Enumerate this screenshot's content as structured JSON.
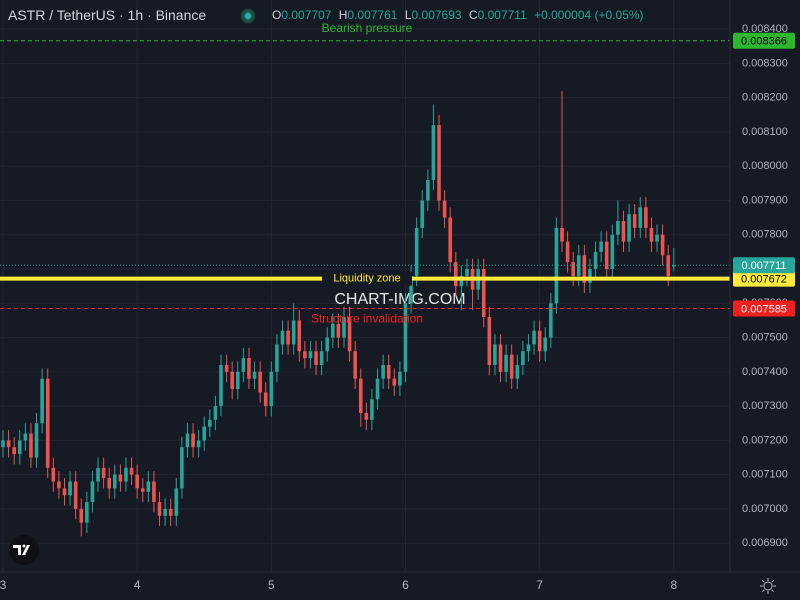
{
  "chart_data": {
    "type": "candlestick",
    "title": "ASTR / TetherUS · 1h · Binance",
    "legend": {
      "open_label": "O",
      "high_label": "H",
      "low_label": "L",
      "close_label": "C",
      "change": "+0.000004 (+0.05%)"
    },
    "watermark": "CHART-IMG.COM",
    "up_color": "#26a69a",
    "down_color": "#ef5350",
    "grid": true,
    "ylim": [
      0.006816,
      0.008485
    ],
    "yticks": [
      {
        "value": 0.0069,
        "label": "0.006900"
      },
      {
        "value": 0.007,
        "label": "0.007000"
      },
      {
        "value": 0.0071,
        "label": "0.007100"
      },
      {
        "value": 0.0072,
        "label": "0.007200"
      },
      {
        "value": 0.0073,
        "label": "0.007300"
      },
      {
        "value": 0.0074,
        "label": "0.007400"
      },
      {
        "value": 0.0075,
        "label": "0.007500"
      },
      {
        "value": 0.0076,
        "label": "0.007600"
      },
      {
        "value": 0.0077,
        "label": "0.007700"
      },
      {
        "value": 0.0078,
        "label": "0.007800"
      },
      {
        "value": 0.0079,
        "label": "0.007900"
      },
      {
        "value": 0.008,
        "label": "0.008000"
      },
      {
        "value": 0.0081,
        "label": "0.008100"
      },
      {
        "value": 0.0082,
        "label": "0.008200"
      },
      {
        "value": 0.0083,
        "label": "0.008300"
      },
      {
        "value": 0.0084,
        "label": "0.008400"
      }
    ],
    "categories": [
      "3",
      null,
      null,
      null,
      null,
      null,
      null,
      null,
      null,
      null,
      null,
      null,
      null,
      null,
      null,
      null,
      null,
      null,
      null,
      null,
      null,
      null,
      null,
      null,
      "4",
      null,
      null,
      null,
      null,
      null,
      null,
      null,
      null,
      null,
      null,
      null,
      null,
      null,
      null,
      null,
      null,
      null,
      null,
      null,
      null,
      null,
      null,
      null,
      "5",
      null,
      null,
      null,
      null,
      null,
      null,
      null,
      null,
      null,
      null,
      null,
      null,
      null,
      null,
      null,
      null,
      null,
      null,
      null,
      null,
      null,
      null,
      null,
      "6",
      null,
      null,
      null,
      null,
      null,
      null,
      null,
      null,
      null,
      null,
      null,
      null,
      null,
      null,
      null,
      null,
      null,
      null,
      null,
      null,
      null,
      null,
      null,
      "7",
      null,
      null,
      null,
      null,
      null,
      null,
      null,
      null,
      null,
      null,
      null,
      null,
      null,
      null,
      null,
      null,
      null,
      null,
      null,
      null,
      null,
      null,
      null,
      "8"
    ],
    "ohlc": [
      [
        0.00718,
        0.00723,
        0.00715,
        0.0072
      ],
      [
        0.0072,
        0.00723,
        0.00715,
        0.00718
      ],
      [
        0.00718,
        0.00721,
        0.00713,
        0.00716
      ],
      [
        0.00716,
        0.00723,
        0.00713,
        0.0072
      ],
      [
        0.0072,
        0.00725,
        0.00717,
        0.00722
      ],
      [
        0.00722,
        0.00725,
        0.00712,
        0.00715
      ],
      [
        0.00715,
        0.00728,
        0.00712,
        0.00725
      ],
      [
        0.00725,
        0.00741,
        0.00722,
        0.00738
      ],
      [
        0.00738,
        0.00741,
        0.00709,
        0.00712
      ],
      [
        0.00712,
        0.00715,
        0.00705,
        0.00708
      ],
      [
        0.00708,
        0.00711,
        0.00703,
        0.00706
      ],
      [
        0.00706,
        0.00709,
        0.00701,
        0.00704
      ],
      [
        0.00704,
        0.00711,
        0.00701,
        0.00708
      ],
      [
        0.00708,
        0.00711,
        0.00697,
        0.007
      ],
      [
        0.007,
        0.00703,
        0.00692,
        0.00696
      ],
      [
        0.00696,
        0.00705,
        0.00693,
        0.00702
      ],
      [
        0.00702,
        0.00711,
        0.00699,
        0.00708
      ],
      [
        0.00708,
        0.00715,
        0.00705,
        0.00712
      ],
      [
        0.00712,
        0.00715,
        0.00706,
        0.00709
      ],
      [
        0.00709,
        0.00712,
        0.00703,
        0.00706
      ],
      [
        0.00706,
        0.00713,
        0.00703,
        0.0071
      ],
      [
        0.0071,
        0.00713,
        0.00705,
        0.00708
      ],
      [
        0.00708,
        0.00715,
        0.00705,
        0.00712
      ],
      [
        0.00712,
        0.00715,
        0.00707,
        0.0071
      ],
      [
        0.0071,
        0.00713,
        0.00703,
        0.00706
      ],
      [
        0.00706,
        0.00709,
        0.00702,
        0.00705
      ],
      [
        0.00705,
        0.00711,
        0.00702,
        0.00708
      ],
      [
        0.00708,
        0.00711,
        0.00699,
        0.00702
      ],
      [
        0.00702,
        0.00705,
        0.00695,
        0.00698
      ],
      [
        0.00698,
        0.00703,
        0.00695,
        0.007
      ],
      [
        0.007,
        0.00703,
        0.00695,
        0.00698
      ],
      [
        0.00698,
        0.00709,
        0.00695,
        0.00706
      ],
      [
        0.00706,
        0.00721,
        0.00703,
        0.00718
      ],
      [
        0.00718,
        0.00725,
        0.00715,
        0.00722
      ],
      [
        0.00722,
        0.00725,
        0.00715,
        0.00718
      ],
      [
        0.00718,
        0.00723,
        0.00715,
        0.0072
      ],
      [
        0.0072,
        0.00727,
        0.00717,
        0.00724
      ],
      [
        0.00724,
        0.00729,
        0.00721,
        0.00726
      ],
      [
        0.00726,
        0.00733,
        0.00723,
        0.0073
      ],
      [
        0.0073,
        0.00745,
        0.00727,
        0.00742
      ],
      [
        0.00742,
        0.00745,
        0.00737,
        0.0074
      ],
      [
        0.0074,
        0.00743,
        0.00732,
        0.00735
      ],
      [
        0.00735,
        0.00743,
        0.00732,
        0.0074
      ],
      [
        0.0074,
        0.00747,
        0.00737,
        0.00744
      ],
      [
        0.00744,
        0.00747,
        0.00735,
        0.00738
      ],
      [
        0.00738,
        0.00743,
        0.00735,
        0.0074
      ],
      [
        0.0074,
        0.00743,
        0.00731,
        0.00734
      ],
      [
        0.00734,
        0.00737,
        0.00727,
        0.0073
      ],
      [
        0.0073,
        0.00743,
        0.00727,
        0.0074
      ],
      [
        0.0074,
        0.00751,
        0.00737,
        0.00748
      ],
      [
        0.00748,
        0.00755,
        0.00745,
        0.00752
      ],
      [
        0.00752,
        0.00755,
        0.00745,
        0.00748
      ],
      [
        0.00748,
        0.0076,
        0.00745,
        0.00755
      ],
      [
        0.00755,
        0.00758,
        0.00743,
        0.00746
      ],
      [
        0.00746,
        0.00749,
        0.00741,
        0.00744
      ],
      [
        0.00744,
        0.00749,
        0.00741,
        0.00746
      ],
      [
        0.00746,
        0.00749,
        0.00739,
        0.00742
      ],
      [
        0.00742,
        0.00749,
        0.00739,
        0.00746
      ],
      [
        0.00746,
        0.00753,
        0.00743,
        0.0075
      ],
      [
        0.0075,
        0.00757,
        0.00747,
        0.00754
      ],
      [
        0.00754,
        0.00757,
        0.00747,
        0.0075
      ],
      [
        0.0075,
        0.00759,
        0.00747,
        0.00756
      ],
      [
        0.00756,
        0.00759,
        0.00743,
        0.00746
      ],
      [
        0.00746,
        0.00749,
        0.00735,
        0.00738
      ],
      [
        0.00738,
        0.00741,
        0.00724,
        0.00728
      ],
      [
        0.00728,
        0.00731,
        0.00723,
        0.00726
      ],
      [
        0.00726,
        0.00735,
        0.00723,
        0.00732
      ],
      [
        0.00732,
        0.00741,
        0.00729,
        0.00738
      ],
      [
        0.00738,
        0.00745,
        0.00735,
        0.00742
      ],
      [
        0.00742,
        0.00745,
        0.00735,
        0.00738
      ],
      [
        0.00738,
        0.00741,
        0.00733,
        0.00736
      ],
      [
        0.00736,
        0.00743,
        0.00733,
        0.0074
      ],
      [
        0.0074,
        0.00763,
        0.00737,
        0.0076
      ],
      [
        0.0076,
        0.00771,
        0.00757,
        0.00768
      ],
      [
        0.00768,
        0.00785,
        0.00765,
        0.00782
      ],
      [
        0.00782,
        0.00793,
        0.00779,
        0.0079
      ],
      [
        0.0079,
        0.00799,
        0.00787,
        0.00796
      ],
      [
        0.00796,
        0.00818,
        0.00793,
        0.00812
      ],
      [
        0.00812,
        0.00815,
        0.00787,
        0.0079
      ],
      [
        0.0079,
        0.00793,
        0.00782,
        0.00785
      ],
      [
        0.00785,
        0.00788,
        0.00769,
        0.00772
      ],
      [
        0.00772,
        0.00775,
        0.00762,
        0.00765
      ],
      [
        0.00765,
        0.00771,
        0.00758,
        0.00768
      ],
      [
        0.00768,
        0.00773,
        0.00765,
        0.0077
      ],
      [
        0.0077,
        0.00773,
        0.00758,
        0.00764
      ],
      [
        0.00764,
        0.00773,
        0.00761,
        0.0077
      ],
      [
        0.0077,
        0.00773,
        0.00753,
        0.00756
      ],
      [
        0.00756,
        0.00759,
        0.00739,
        0.00742
      ],
      [
        0.00742,
        0.00751,
        0.00739,
        0.00748
      ],
      [
        0.00748,
        0.00751,
        0.00737,
        0.0074
      ],
      [
        0.0074,
        0.00748,
        0.00737,
        0.00745
      ],
      [
        0.00745,
        0.00748,
        0.00735,
        0.00738
      ],
      [
        0.00738,
        0.00745,
        0.00735,
        0.00742
      ],
      [
        0.00742,
        0.00749,
        0.00739,
        0.00746
      ],
      [
        0.00746,
        0.00751,
        0.00743,
        0.00748
      ],
      [
        0.00748,
        0.00755,
        0.00745,
        0.00752
      ],
      [
        0.00752,
        0.00755,
        0.00743,
        0.00746
      ],
      [
        0.00746,
        0.00753,
        0.00743,
        0.0075
      ],
      [
        0.0075,
        0.00763,
        0.00747,
        0.0076
      ],
      [
        0.0076,
        0.00785,
        0.00757,
        0.00782
      ],
      [
        0.00782,
        0.00822,
        0.00775,
        0.00778
      ],
      [
        0.00778,
        0.00781,
        0.00769,
        0.00772
      ],
      [
        0.00772,
        0.00775,
        0.00765,
        0.00768
      ],
      [
        0.00768,
        0.00777,
        0.00765,
        0.00774
      ],
      [
        0.00774,
        0.00777,
        0.00763,
        0.00766
      ],
      [
        0.00766,
        0.00773,
        0.00763,
        0.0077
      ],
      [
        0.0077,
        0.00778,
        0.00767,
        0.00775
      ],
      [
        0.00775,
        0.00781,
        0.00772,
        0.00778
      ],
      [
        0.00778,
        0.00781,
        0.00767,
        0.0077
      ],
      [
        0.0077,
        0.00783,
        0.00767,
        0.0078
      ],
      [
        0.0078,
        0.0079,
        0.00777,
        0.00784
      ],
      [
        0.00784,
        0.00787,
        0.00775,
        0.00778
      ],
      [
        0.00778,
        0.00789,
        0.00775,
        0.00786
      ],
      [
        0.00786,
        0.00789,
        0.00779,
        0.00782
      ],
      [
        0.00782,
        0.00791,
        0.00779,
        0.00788
      ],
      [
        0.00788,
        0.00791,
        0.00779,
        0.00782
      ],
      [
        0.00782,
        0.00785,
        0.00775,
        0.00778
      ],
      [
        0.00778,
        0.00783,
        0.00775,
        0.0078
      ],
      [
        0.0078,
        0.00783,
        0.00771,
        0.00774
      ],
      [
        0.00774,
        0.00777,
        0.00765,
        0.00768
      ],
      [
        0.007707,
        0.007761,
        0.007693,
        0.007711
      ]
    ],
    "hlines": [
      {
        "value": 0.008366,
        "label": "Bearish pressure",
        "color": "#2fb62f",
        "style": "dashed"
      },
      {
        "value": 0.007672,
        "label": "Liquidity zone",
        "color": "#ffeb3b",
        "style": "solid"
      },
      {
        "value": 0.007585,
        "label": "Structure invalidation",
        "color": "#f02020",
        "style": "dashed"
      }
    ]
  }
}
